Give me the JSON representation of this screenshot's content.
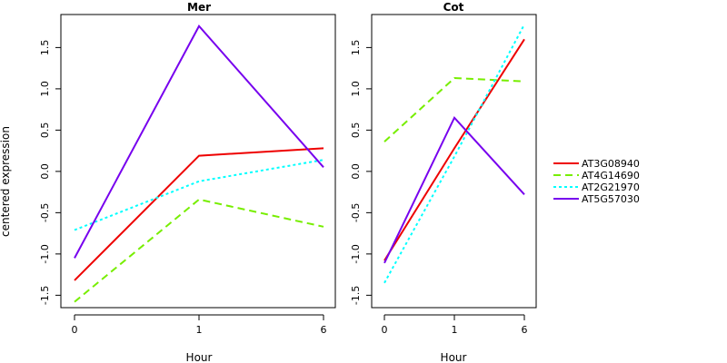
{
  "chart_data": [
    {
      "type": "line",
      "title": "Mer",
      "xlabel": "Hour",
      "ylabel": "centered expression",
      "categories": [
        "0",
        "1",
        "6"
      ],
      "yticks": [
        "-1.5",
        "-1.0",
        "-0.5",
        "0.0",
        "0.5",
        "1.0",
        "1.5"
      ],
      "ylim": [
        -1.65,
        1.9
      ],
      "series": [
        {
          "name": "AT3G08940",
          "values": [
            -1.32,
            0.19,
            0.28
          ],
          "color": "#ee0000",
          "dash": "solid"
        },
        {
          "name": "AT4G14690",
          "values": [
            -1.58,
            -0.34,
            -0.67
          ],
          "color": "#77ee00",
          "dash": "dashed"
        },
        {
          "name": "AT2G21970",
          "values": [
            -0.71,
            -0.12,
            0.14
          ],
          "color": "#00ffff",
          "dash": "dotted"
        },
        {
          "name": "AT5G57030",
          "values": [
            -1.05,
            1.76,
            0.05
          ],
          "color": "#7700ee",
          "dash": "solid"
        }
      ]
    },
    {
      "type": "line",
      "title": "Cot",
      "xlabel": "Hour",
      "ylabel": "",
      "categories": [
        "0",
        "1",
        "6"
      ],
      "yticks": [
        "-1.5",
        "-1.0",
        "-0.5",
        "0.0",
        "0.5",
        "1.0",
        "1.5"
      ],
      "ylim": [
        -1.65,
        1.9
      ],
      "series": [
        {
          "name": "AT3G08940",
          "values": [
            -1.08,
            0.28,
            1.6
          ],
          "color": "#ee0000",
          "dash": "solid"
        },
        {
          "name": "AT4G14690",
          "values": [
            0.36,
            1.13,
            1.09
          ],
          "color": "#77ee00",
          "dash": "dashed"
        },
        {
          "name": "AT2G21970",
          "values": [
            -1.35,
            0.18,
            1.78
          ],
          "color": "#00ffff",
          "dash": "dotted"
        },
        {
          "name": "AT5G57030",
          "values": [
            -1.11,
            0.65,
            -0.28
          ],
          "color": "#7700ee",
          "dash": "solid"
        }
      ]
    }
  ],
  "legend": {
    "placement": "right",
    "entries": [
      {
        "label": "AT3G08940",
        "color": "#ee0000",
        "dash": "solid"
      },
      {
        "label": "AT4G14690",
        "color": "#77ee00",
        "dash": "dashed"
      },
      {
        "label": "AT2G21970",
        "color": "#00ffff",
        "dash": "dotted"
      },
      {
        "label": "AT5G57030",
        "color": "#7700ee",
        "dash": "solid"
      }
    ]
  }
}
